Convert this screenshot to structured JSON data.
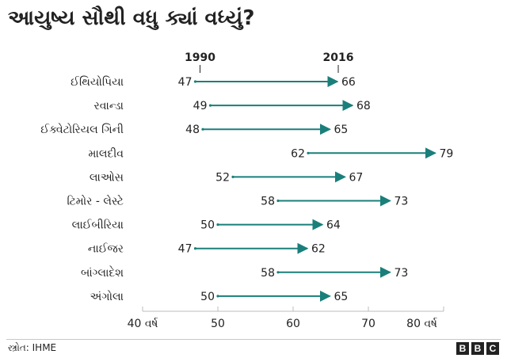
{
  "title": "આયુષ્ય સૌથી વધુ ક્યાં વધ્યું?",
  "source": "સ્ત્રોત: IHME",
  "logo": {
    "text": "BBC",
    "letters": [
      "B",
      "B",
      "C"
    ]
  },
  "colors": {
    "line": "#1a7f7a",
    "text": "#222222",
    "axis": "#bdbdbd"
  },
  "chart_data": {
    "type": "dumbbell",
    "series": [
      {
        "name": "1990",
        "values": [
          47,
          49,
          48,
          62,
          52,
          58,
          50,
          47,
          58,
          50
        ]
      },
      {
        "name": "2016",
        "values": [
          66,
          68,
          65,
          79,
          67,
          73,
          64,
          62,
          73,
          65
        ]
      }
    ],
    "categories": [
      "ઈથિયોપિયા",
      "રવાન્ડા",
      "ઈક્વેટોરિયલ ગિની",
      "માલદીવ",
      "લાઓસ",
      "ટિમોર - લેસ્ટે",
      "લાઈબીરિયા",
      "નાઈજર",
      "બાંગ્લાદેશ",
      "અંગોલા"
    ],
    "xlim": [
      40,
      80
    ],
    "xticks": [
      40,
      50,
      60,
      70,
      80
    ],
    "xtick_labels": [
      "40 વર્ષ",
      "50",
      "60",
      "70",
      "80 વર્ષ"
    ],
    "grid": false,
    "legend": "header"
  }
}
